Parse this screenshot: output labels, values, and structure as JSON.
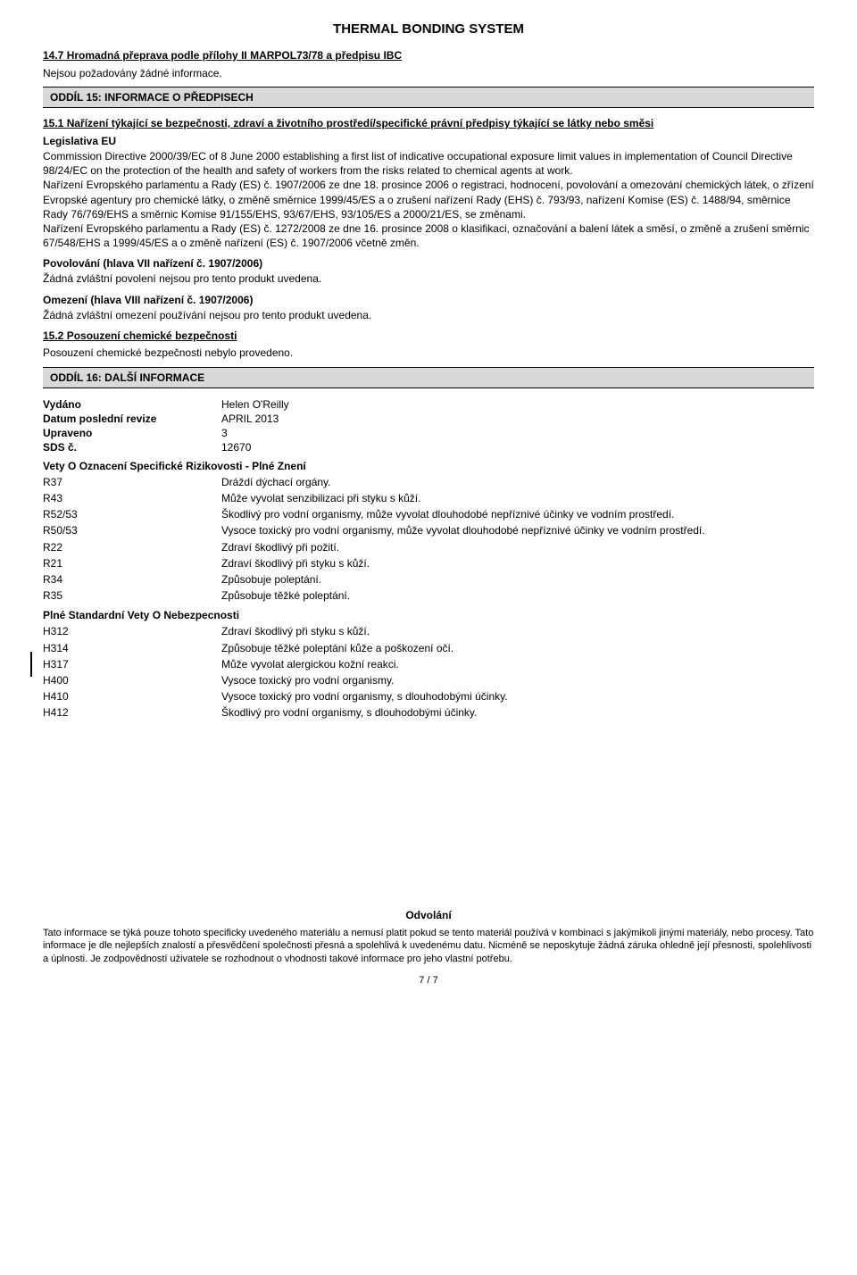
{
  "title": "THERMAL BONDING SYSTEM",
  "s14_7_head": "14.7 Hromadná přeprava podle přílohy II MARPOL73/78 a předpisu IBC",
  "s14_7_body": "Nejsou požadovány žádné informace.",
  "oddil15": "ODDÍL 15: INFORMACE O PŘEDPISECH",
  "s15_1_head": "15.1 Nařízení týkající se bezpečnosti, zdraví a životního prostředí/specifické právní předpisy týkající se látky nebo směsi",
  "legislativa_label": "Legislativa EU",
  "legislativa_body": "Commission Directive 2000/39/EC of 8 June 2000 establishing a first list of indicative occupational exposure limit values in implementation of Council Directive 98/24/EC on the protection of the health and safety of workers from the risks related to chemical agents at work.\nNařízení Evropského parlamentu a Rady (ES) č. 1907/2006 ze dne 18. prosince 2006 o registraci,  hodnocení,  povolování a omezování chemických látek,  o zřízení Evropské agentury pro chemické látky,  o změně směrnice 1999/45/ES a o zrušení nařízení Rady (EHS) č. 793/93,  nařízení Komise (ES) č. 1488/94,  směrnice Rady 76/769/EHS a směrnic Komise 91/155/EHS,  93/67/EHS,  93/105/ES a 2000/21/ES,  se změnami.\nNařízení Evropského parlamentu a Rady (ES) č. 1272/2008 ze dne 16. prosince 2008 o klasifikaci,  označování a balení látek a směsí,  o změně a zrušení směrnic 67/548/EHS a 1999/45/ES a o změně nařízení (ES) č. 1907/2006 včetně změn.",
  "povolovani_head": "Povolování (hlava VII nařízení č. 1907/2006)",
  "povolovani_body": "Žádná zvláštní povolení nejsou pro tento produkt uvedena.",
  "omezeni_head": "Omezení (hlava VIII nařízení č. 1907/2006)",
  "omezeni_body": "Žádná zvláštní omezení používání nejsou pro tento produkt uvedena.",
  "s15_2_head": "15.2 Posouzení chemické bezpečnosti",
  "s15_2_body": "Posouzení chemické bezpečnosti nebylo provedeno.",
  "oddil16": "ODDÍL 16: DALŠÍ INFORMACE",
  "info": {
    "vydano_l": "Vydáno",
    "vydano_v": "Helen O'Reilly",
    "datum_l": "Datum poslední revize",
    "datum_v": "APRIL 2013",
    "upraveno_l": "Upraveno",
    "upraveno_v": "3",
    "sds_l": "SDS č.",
    "sds_v": "12670"
  },
  "r_head": "Vety O Oznacení Specifické Rizikovosti - Plné Znení",
  "r_phrases": [
    {
      "code": "R37",
      "text": "Dráždí dýchací orgány."
    },
    {
      "code": "R43",
      "text": "Může vyvolat senzibilizaci při styku s kůží."
    },
    {
      "code": "R52/53",
      "text": "Škodlivý pro vodní organismy, může vyvolat dlouhodobé nepříznivé účinky ve vodním prostředí."
    },
    {
      "code": "R50/53",
      "text": "Vysoce toxický pro vodní organismy, může vyvolat dlouhodobé nepříznivé účinky ve vodním prostředí."
    },
    {
      "code": "R22",
      "text": "Zdraví škodlivý při požití."
    },
    {
      "code": "R21",
      "text": "Zdraví škodlivý při styku s kůží."
    },
    {
      "code": "R34",
      "text": "Způsobuje poleptání."
    },
    {
      "code": "R35",
      "text": "Způsobuje těžké poleptání."
    }
  ],
  "h_head": "Plné Standardní Vety O Nebezpecnosti",
  "h_phrases": [
    {
      "code": "H312",
      "text": "Zdraví škodlivý při styku s kůží."
    },
    {
      "code": "H314",
      "text": "Způsobuje těžké poleptání kůže a poškození očí."
    },
    {
      "code": "H317",
      "text": "Může vyvolat alergickou kožní reakci."
    },
    {
      "code": "H400",
      "text": "Vysoce toxický pro vodní organismy."
    },
    {
      "code": "H410",
      "text": "Vysoce toxický pro vodní organismy, s dlouhodobými účinky."
    },
    {
      "code": "H412",
      "text": "Škodlivý pro vodní organismy, s dlouhodobými účinky."
    }
  ],
  "disclaimer_head": "Odvolání",
  "disclaimer_body": "Tato informace se týká pouze tohoto specificky uvedeného materiálu a nemusí platit pokud se tento materiál používá v kombinaci s jakýmikoli jinými materiály, nebo procesy. Tato informace je dle nejlepších znalostí a přesvědčení společnosti přesná a spolehlivá k uvedenému datu. Nicméně se neposkytuje žádná záruka ohledně její přesnosti, spolehlivosti a úplnosti. Je zodpovědností uživatele se rozhodnout o vhodnosti takové informace pro jeho vlastní potřebu.",
  "page_num": "7 /  7"
}
